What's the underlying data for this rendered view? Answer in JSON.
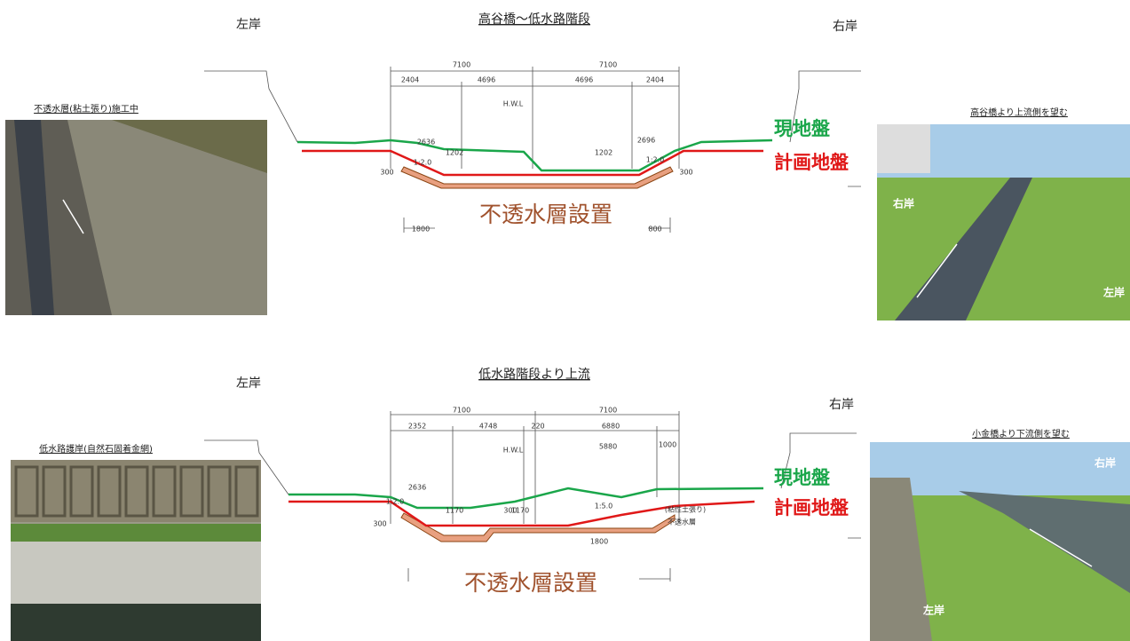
{
  "sections": [
    {
      "title": "高谷橋～低水路階段",
      "left_bank": "左岸",
      "right_bank": "右岸",
      "photo_left": {
        "caption": "不透水層(粘土張り)施工中"
      },
      "photo_right": {
        "caption": "高谷橋より上流側を望む",
        "right_bank": "右岸",
        "left_bank": "左岸"
      },
      "legend": {
        "existing": "現地盤",
        "planned": "計画地盤"
      },
      "layer_label": "不透水層設置",
      "dims": [
        "7100",
        "7100",
        "2404",
        "4696",
        "4696",
        "2404",
        "H.W.L",
        "2636",
        "2696",
        "1:2.0",
        "1:2.0",
        "300",
        "1202",
        "1202",
        "300",
        "1800",
        "800"
      ]
    },
    {
      "title": "低水路階段より上流",
      "left_bank": "左岸",
      "right_bank": "右岸",
      "photo_left": {
        "caption": "低水路護岸(自然石固着金網)"
      },
      "photo_right": {
        "caption": "小金橋より下流側を望む",
        "right_bank": "右岸",
        "left_bank": "左岸"
      },
      "legend": {
        "existing": "現地盤",
        "planned": "計画地盤"
      },
      "layer_label": "不透水層設置",
      "dims": [
        "7100",
        "7100",
        "2352",
        "4748",
        "220",
        "6880",
        "5880",
        "1000",
        "H.W.L",
        "2636",
        "1:2.0",
        "1:5.0",
        "300",
        "1170",
        "300",
        "1170",
        "不透水層",
        "(粘性土張り)",
        "1800"
      ]
    }
  ]
}
